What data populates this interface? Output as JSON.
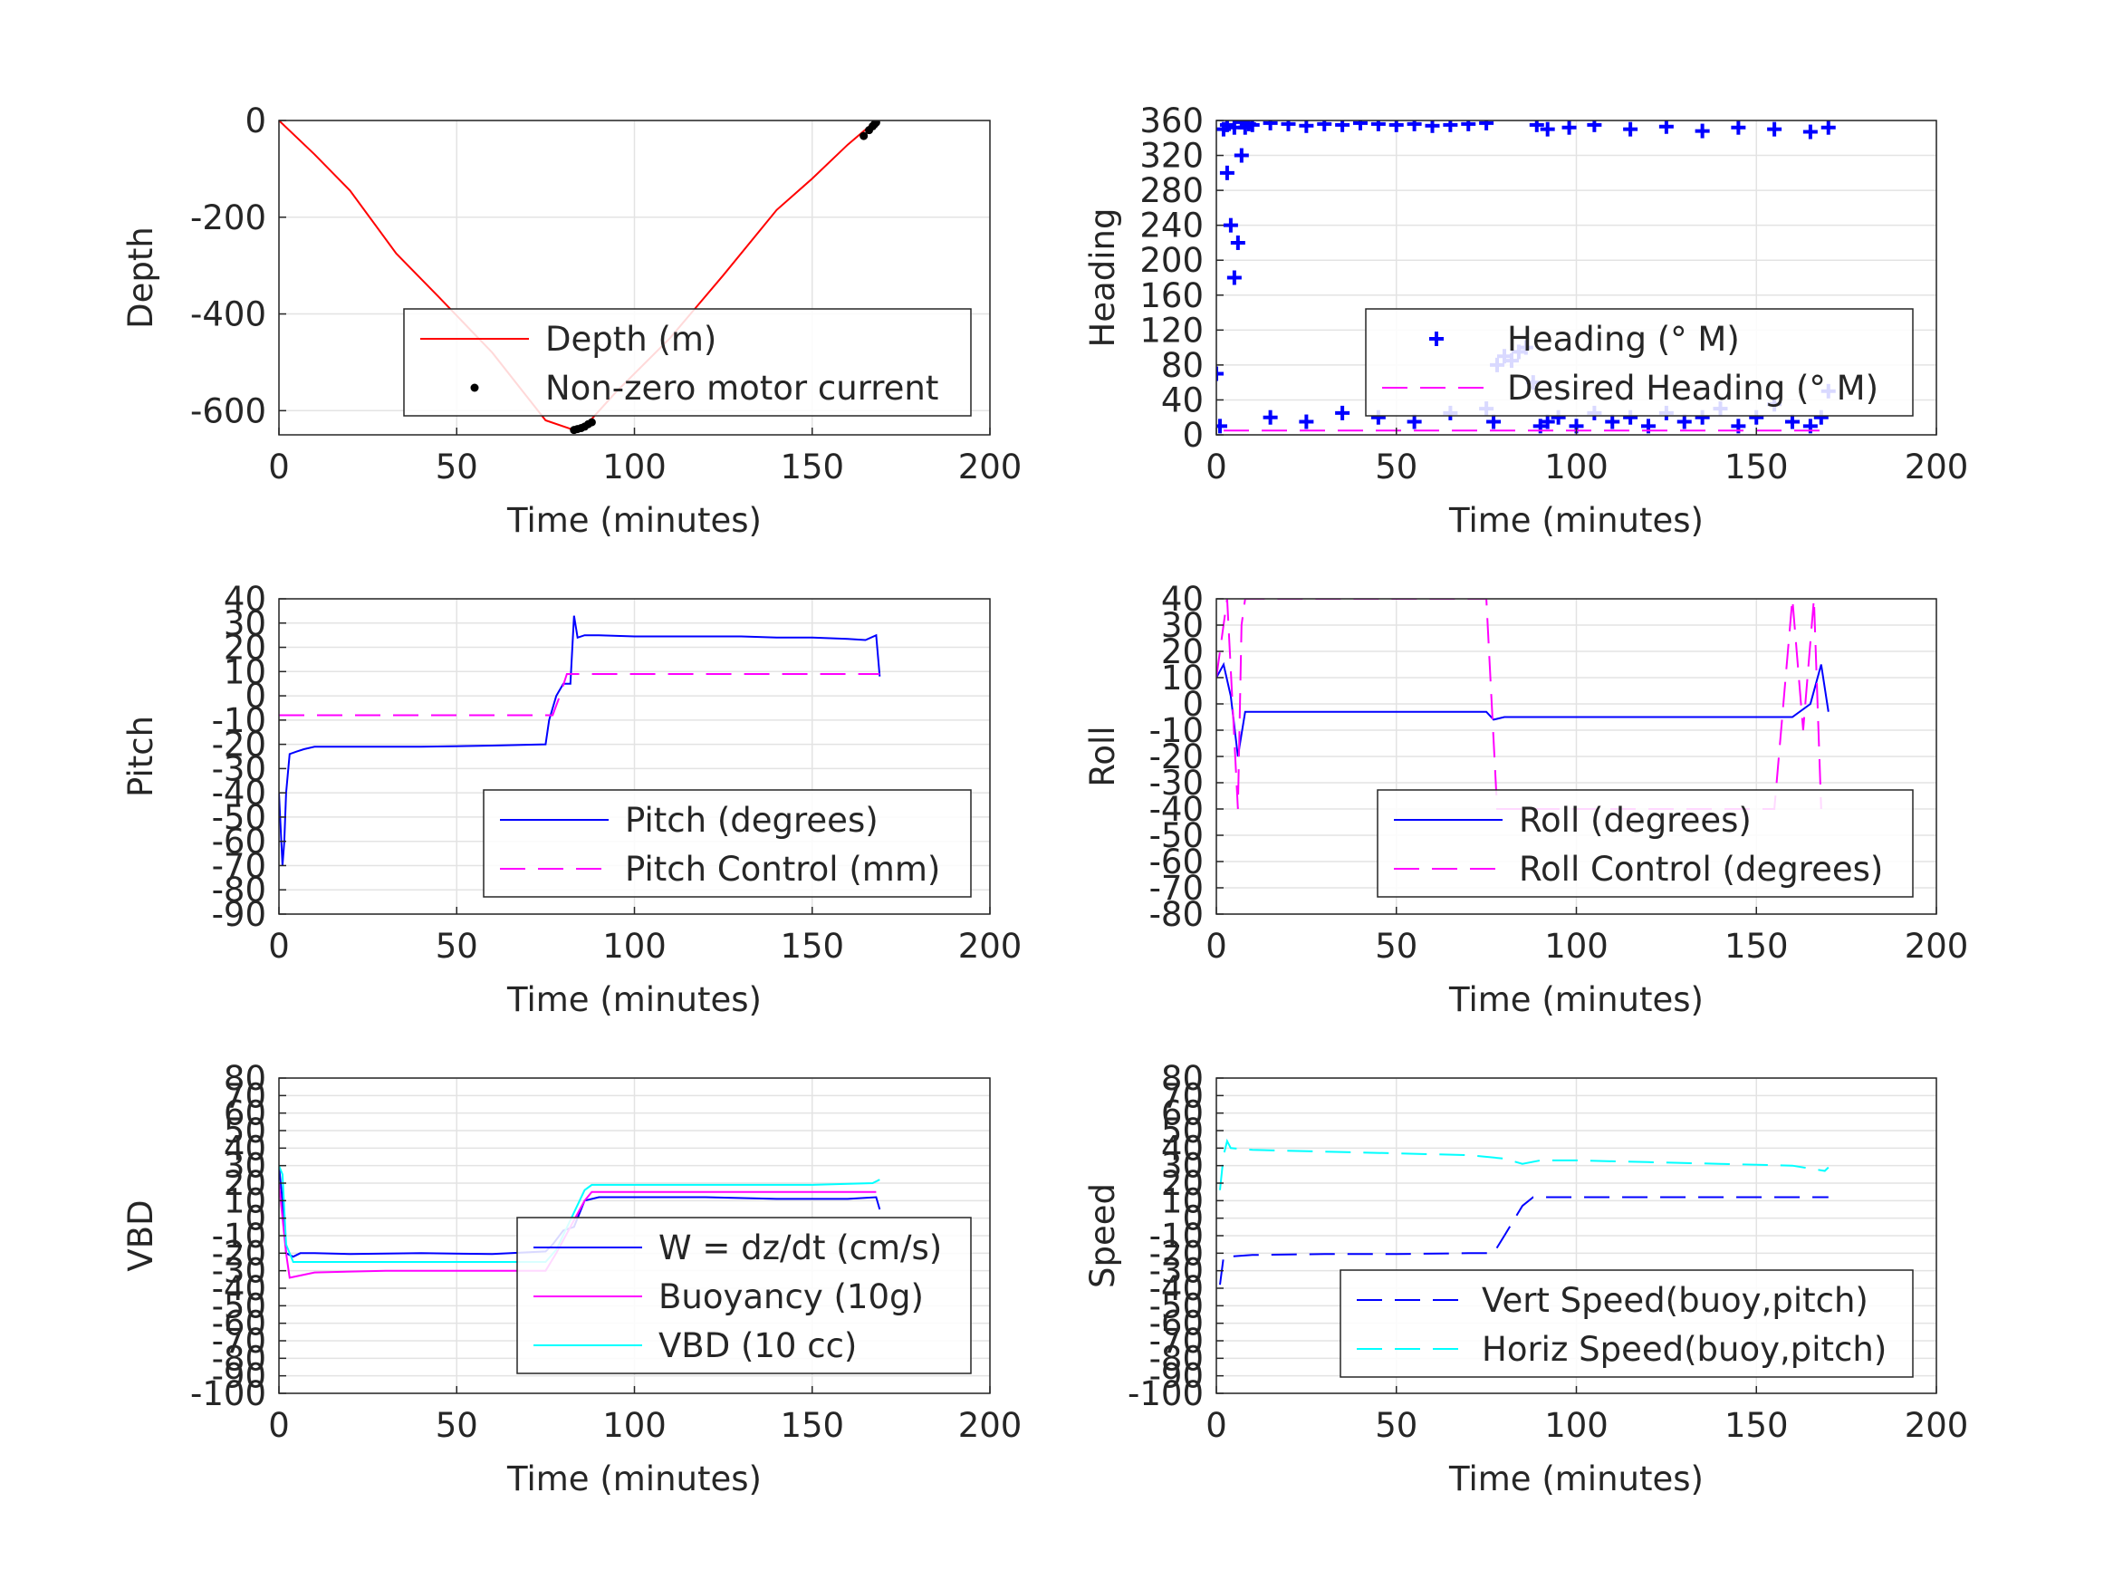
{
  "colors": {
    "depth": "#ff0000",
    "motor": "#000000",
    "heading": "#0000ff",
    "desired_heading": "#ff00ff",
    "pitch": "#0000ff",
    "pitch_control": "#ff00ff",
    "roll": "#0000ff",
    "roll_control": "#ff00ff",
    "w": "#0000ff",
    "buoyancy": "#ff00ff",
    "vbd": "#00ffff",
    "vert_speed": "#0000ff",
    "horiz_speed": "#00ffff",
    "grid": "#e3e3e3",
    "axis": "#262626"
  },
  "chart_data": [
    {
      "id": "depth",
      "type": "line",
      "xlabel": "Time (minutes)",
      "ylabel": "Depth",
      "xlim": [
        0,
        200
      ],
      "ylim": [
        -650,
        0
      ],
      "xticks": [
        "0",
        "50",
        "100",
        "150",
        "200"
      ],
      "yticks": [
        "0",
        "-200",
        "-400",
        "-600"
      ],
      "legend_position": "lower-right",
      "grid": true,
      "series": [
        {
          "name": "Depth (m)",
          "style": "solid",
          "color": "#ff0000",
          "x": [
            0,
            10,
            20,
            33,
            45,
            60,
            75,
            83,
            87,
            95,
            110,
            125,
            140,
            150,
            160,
            168
          ],
          "y": [
            0,
            -70,
            -145,
            -275,
            -365,
            -480,
            -620,
            -640,
            -625,
            -560,
            -450,
            -320,
            -185,
            -120,
            -50,
            0
          ]
        },
        {
          "name": "Non-zero motor current",
          "style": "dots",
          "color": "#000000",
          "x": [
            83,
            84,
            85,
            86,
            87,
            88,
            164.5,
            166,
            167,
            167.5,
            168
          ],
          "y": [
            -640,
            -638,
            -636,
            -633,
            -628,
            -624,
            -32,
            -20,
            -12,
            -8,
            -4
          ]
        }
      ]
    },
    {
      "id": "heading",
      "type": "scatter",
      "xlabel": "Time (minutes)",
      "ylabel": "Heading",
      "xlim": [
        0,
        200
      ],
      "ylim": [
        0,
        360
      ],
      "xticks": [
        "0",
        "50",
        "100",
        "150",
        "200"
      ],
      "yticks": [
        "0",
        "40",
        "80",
        "120",
        "160",
        "200",
        "240",
        "280",
        "320",
        "360"
      ],
      "legend_position": "lower-right",
      "grid": true,
      "series": [
        {
          "name": "Heading (° M)",
          "style": "plus",
          "color": "#0000ff",
          "x": [
            0,
            1,
            2,
            3,
            4,
            5,
            6,
            7,
            8,
            10,
            15,
            20,
            25,
            30,
            35,
            40,
            45,
            50,
            55,
            60,
            65,
            70,
            75,
            77,
            78,
            80,
            82,
            84,
            86,
            88,
            90,
            92,
            95,
            100,
            105,
            110,
            115,
            120,
            125,
            130,
            135,
            140,
            145,
            150,
            155,
            160,
            165,
            168,
            170,
            3,
            5,
            7,
            9,
            15,
            25,
            35,
            45,
            55,
            65,
            75,
            89,
            92,
            98,
            105,
            115,
            125,
            135,
            145,
            155,
            165,
            170
          ],
          "y": [
            70,
            10,
            350,
            300,
            240,
            180,
            220,
            320,
            352,
            355,
            357,
            356,
            354,
            356,
            355,
            357,
            356,
            355,
            356,
            354,
            355,
            356,
            357,
            15,
            80,
            90,
            85,
            95,
            100,
            60,
            10,
            15,
            20,
            10,
            25,
            15,
            20,
            10,
            25,
            15,
            20,
            30,
            10,
            20,
            35,
            15,
            10,
            20,
            50,
            355,
            352,
            358,
            356,
            20,
            15,
            25,
            20,
            15,
            25,
            30,
            355,
            350,
            352,
            355,
            350,
            353,
            348,
            352,
            350,
            347,
            352
          ]
        },
        {
          "name": "Desired Heading (° M)",
          "style": "dashed",
          "color": "#ff00ff",
          "x": [
            2,
            170
          ],
          "y": [
            5,
            5
          ]
        }
      ]
    },
    {
      "id": "pitch",
      "type": "line",
      "xlabel": "Time (minutes)",
      "ylabel": "Pitch",
      "xlim": [
        0,
        200
      ],
      "ylim": [
        -90,
        40
      ],
      "xticks": [
        "0",
        "50",
        "100",
        "150",
        "200"
      ],
      "yticks": [
        "40",
        "30",
        "20",
        "10",
        "0",
        "-10",
        "-20",
        "-30",
        "-40",
        "-50",
        "-60",
        "-70",
        "-80",
        "-90"
      ],
      "legend_position": "lower-right",
      "grid": true,
      "series": [
        {
          "name": "Pitch (degrees)",
          "style": "solid",
          "color": "#0000ff",
          "x": [
            0,
            1,
            1.5,
            2,
            3,
            5,
            7,
            10,
            20,
            40,
            60,
            75,
            76,
            78,
            80,
            82,
            83,
            84,
            86,
            90,
            100,
            110,
            120,
            130,
            140,
            150,
            160,
            165,
            168,
            169
          ],
          "y": [
            -40,
            -70,
            -60,
            -40,
            -24,
            -23,
            -22,
            -21,
            -21,
            -21,
            -20.5,
            -20,
            -10,
            0,
            5,
            5,
            33,
            24,
            25,
            25,
            24.5,
            24.5,
            24.5,
            24.5,
            24,
            24,
            23.5,
            23,
            25,
            8
          ]
        },
        {
          "name": "Pitch Control (mm)",
          "style": "dashed",
          "color": "#ff00ff",
          "x": [
            0,
            77,
            79,
            81,
            169
          ],
          "y": [
            -8,
            -8,
            0,
            9,
            9
          ]
        }
      ]
    },
    {
      "id": "roll",
      "type": "line",
      "xlabel": "Time (minutes)",
      "ylabel": "Roll",
      "xlim": [
        0,
        200
      ],
      "ylim": [
        -80,
        40
      ],
      "xticks": [
        "0",
        "50",
        "100",
        "150",
        "200"
      ],
      "yticks": [
        "40",
        "30",
        "20",
        "10",
        "0",
        "-10",
        "-20",
        "-30",
        "-40",
        "-50",
        "-60",
        "-70",
        "-80"
      ],
      "legend_position": "lower-right",
      "grid": true,
      "series": [
        {
          "name": "Roll (degrees)",
          "style": "solid",
          "color": "#0000ff",
          "x": [
            0,
            2,
            4,
            6,
            8,
            10,
            15,
            20,
            30,
            40,
            50,
            60,
            70,
            75,
            77,
            80,
            90,
            100,
            110,
            120,
            130,
            140,
            150,
            160,
            165,
            168,
            170
          ],
          "y": [
            10,
            15,
            3,
            -20,
            -3,
            -3,
            -3,
            -3,
            -3,
            -3,
            -3,
            -3,
            -3,
            -3,
            -6,
            -5,
            -5,
            -5,
            -5,
            -5,
            -5,
            -5,
            -5,
            -5,
            0,
            15,
            -3
          ]
        },
        {
          "name": "Roll Control (degrees)",
          "style": "dashed",
          "color": "#ff00ff",
          "x": [
            0,
            3,
            6,
            7,
            8,
            12,
            20,
            30,
            40,
            50,
            60,
            70,
            75,
            78,
            85,
            95,
            105,
            115,
            125,
            135,
            145,
            155,
            160,
            163,
            166,
            168
          ],
          "y": [
            10,
            40,
            -40,
            30,
            40,
            40,
            40,
            40,
            40,
            40,
            40,
            40,
            40,
            -40,
            -40,
            -40,
            -40,
            -40,
            -40,
            -40,
            -40,
            -40,
            40,
            -10,
            40,
            -40
          ]
        }
      ]
    },
    {
      "id": "vbd",
      "type": "line",
      "xlabel": "Time (minutes)",
      "ylabel": "VBD",
      "xlim": [
        0,
        200
      ],
      "ylim": [
        -100,
        80
      ],
      "xticks": [
        "0",
        "50",
        "100",
        "150",
        "200"
      ],
      "yticks": [
        "80",
        "70",
        "60",
        "50",
        "40",
        "30",
        "20",
        "10",
        "0",
        "-10",
        "-20",
        "-30",
        "-40",
        "-50",
        "-60",
        "-70",
        "-80",
        "-90",
        "-100"
      ],
      "legend_position": "lower-right",
      "grid": true,
      "series": [
        {
          "name": "W = dz/dt (cm/s)",
          "style": "solid",
          "color": "#0000ff",
          "x": [
            0,
            1,
            2,
            4,
            6,
            10,
            20,
            40,
            60,
            75,
            77,
            80,
            83,
            86,
            90,
            100,
            120,
            140,
            160,
            168,
            169
          ],
          "y": [
            30,
            10,
            -20,
            -22,
            -20,
            -20,
            -20.5,
            -20,
            -20.5,
            -19,
            -15,
            -7,
            -5,
            10,
            12,
            12,
            12,
            11,
            11,
            12,
            5
          ]
        },
        {
          "name": "Buoyancy (10g)",
          "style": "solid",
          "color": "#ff00ff",
          "x": [
            0,
            2,
            3,
            10,
            30,
            50,
            75,
            78,
            86,
            88,
            100,
            150,
            168
          ],
          "y": [
            20,
            -20,
            -34,
            -31,
            -30,
            -30,
            -30,
            -20,
            10,
            15,
            15,
            15,
            15
          ]
        },
        {
          "name": "VBD (10 cc)",
          "style": "solid",
          "color": "#00ffff",
          "x": [
            0,
            1,
            2,
            4,
            10,
            40,
            75,
            78,
            86,
            88,
            100,
            150,
            167,
            169
          ],
          "y": [
            30,
            25,
            -15,
            -25,
            -25,
            -25,
            -25,
            -18,
            16,
            19,
            19,
            19,
            20,
            22
          ]
        }
      ]
    },
    {
      "id": "speed",
      "type": "line",
      "xlabel": "Time (minutes)",
      "ylabel": "Speed",
      "xlim": [
        0,
        200
      ],
      "ylim": [
        -100,
        80
      ],
      "xticks": [
        "0",
        "50",
        "100",
        "150",
        "200"
      ],
      "yticks": [
        "80",
        "70",
        "60",
        "50",
        "40",
        "30",
        "20",
        "10",
        "0",
        "-10",
        "-20",
        "-30",
        "-40",
        "-50",
        "-60",
        "-70",
        "-80",
        "-90",
        "-100"
      ],
      "legend_position": "lower-right",
      "grid": true,
      "series": [
        {
          "name": "Vert Speed(buoy,pitch)",
          "style": "dashed",
          "color": "#0000ff",
          "x": [
            1,
            2,
            3,
            10,
            30,
            50,
            70,
            77,
            80,
            85,
            88,
            90,
            100,
            120,
            140,
            160,
            170
          ],
          "y": [
            -38,
            -22,
            -22,
            -21,
            -20.5,
            -20.5,
            -20,
            -20,
            -10,
            7,
            12,
            12,
            12,
            12,
            12,
            12,
            12
          ]
        },
        {
          "name": "Horiz Speed(buoy,pitch)",
          "style": "dashed",
          "color": "#00ffff",
          "x": [
            1,
            2,
            3,
            4,
            10,
            30,
            50,
            70,
            80,
            85,
            90,
            100,
            120,
            140,
            160,
            169,
            170
          ],
          "y": [
            16,
            36,
            44,
            40,
            39,
            38,
            37,
            36,
            34,
            31,
            33,
            33,
            32,
            31,
            30,
            27,
            29
          ]
        }
      ]
    }
  ]
}
